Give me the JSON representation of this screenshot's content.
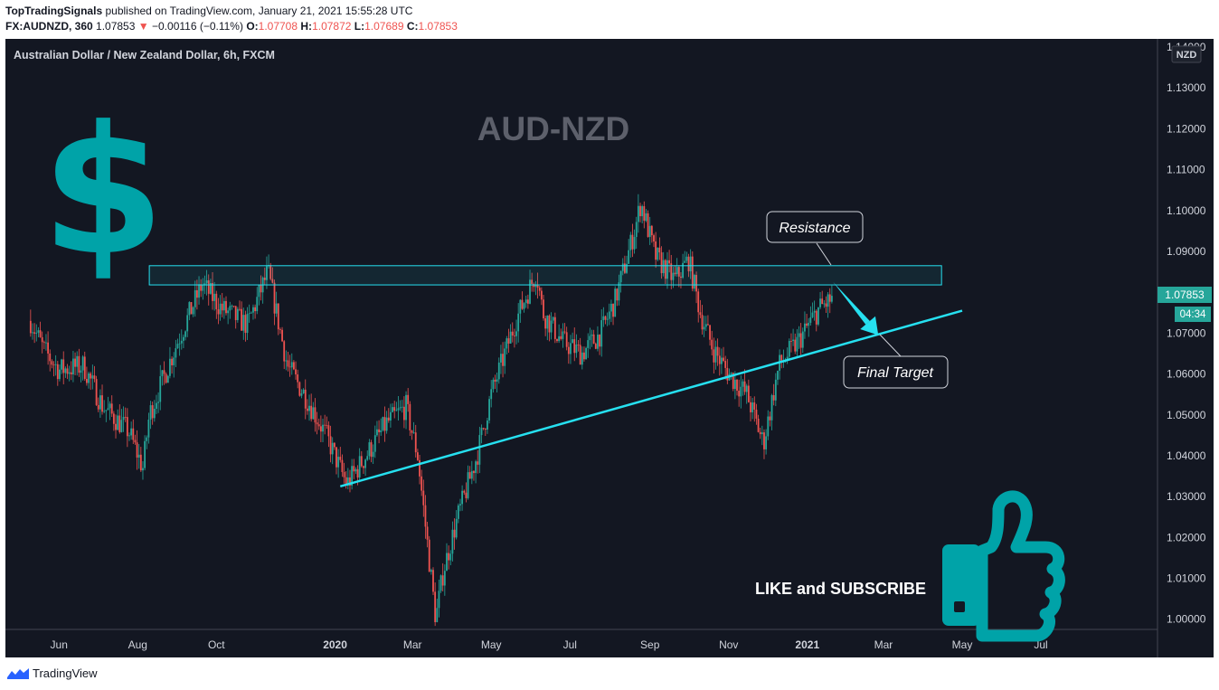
{
  "header": {
    "author": "TopTradingSignals",
    "published": "published on TradingView.com, January 21, 2021 15:55:28 UTC",
    "symbol": "FX:AUDNZD, 360",
    "last": "1.07853",
    "change": "−0.00116 (−0.11%)",
    "open_label": "O:",
    "open": "1.07708",
    "high_label": "H:",
    "high": "1.07872",
    "low_label": "L:",
    "low": "1.07689",
    "close_label": "C:",
    "close": "1.07853"
  },
  "chart": {
    "instrument": "Australian Dollar / New Zealand Dollar, 6h, FXCM",
    "watermark": "AUD-NZD",
    "currency_badge": "NZD",
    "price_label": "1.07853",
    "countdown_label": "04:34",
    "resistance_label": "Resistance",
    "target_label": "Final Target",
    "cta": "LIKE and SUBSCRIBE",
    "dollar_icon": "$"
  },
  "colors": {
    "background": "#131722",
    "up": "#26a69a",
    "down": "#ef5350",
    "trendline": "#26e0f0",
    "icon": "#00a3a8",
    "watermark": "#5d606b"
  },
  "footer": {
    "brand": "TradingView"
  },
  "chart_data": {
    "type": "candlestick",
    "title": "Australian Dollar / New Zealand Dollar, 6h, FXCM",
    "y_ticks": [
      "1.00000",
      "1.01000",
      "1.02000",
      "1.03000",
      "1.04000",
      "1.05000",
      "1.06000",
      "1.07000",
      "1.08000",
      "1.09000",
      "1.10000",
      "1.11000",
      "1.12000",
      "1.13000",
      "1.14000"
    ],
    "x_ticks": [
      "Jun",
      "Aug",
      "Oct",
      "2020",
      "Mar",
      "May",
      "Jul",
      "Sep",
      "Nov",
      "2021",
      "Mar",
      "May",
      "Jul"
    ],
    "ylim": [
      0.9975,
      1.142
    ],
    "last_price": 1.07853,
    "approx_close_path": [
      {
        "date": "2019-05-10",
        "close": 1.073
      },
      {
        "date": "2019-05-20",
        "close": 1.066
      },
      {
        "date": "2019-06-01",
        "close": 1.061
      },
      {
        "date": "2019-06-20",
        "close": 1.062
      },
      {
        "date": "2019-07-05",
        "close": 1.052
      },
      {
        "date": "2019-07-25",
        "close": 1.046
      },
      {
        "date": "2019-08-05",
        "close": 1.037
      },
      {
        "date": "2019-08-10",
        "close": 1.05
      },
      {
        "date": "2019-09-01",
        "close": 1.068
      },
      {
        "date": "2019-09-20",
        "close": 1.082
      },
      {
        "date": "2019-10-05",
        "close": 1.076
      },
      {
        "date": "2019-10-25",
        "close": 1.072
      },
      {
        "date": "2019-11-10",
        "close": 1.085
      },
      {
        "date": "2019-11-25",
        "close": 1.062
      },
      {
        "date": "2019-12-10",
        "close": 1.054
      },
      {
        "date": "2019-12-25",
        "close": 1.045
      },
      {
        "date": "2020-01-10",
        "close": 1.033
      },
      {
        "date": "2020-01-25",
        "close": 1.04
      },
      {
        "date": "2020-02-10",
        "close": 1.048
      },
      {
        "date": "2020-02-25",
        "close": 1.052
      },
      {
        "date": "2020-03-05",
        "close": 1.04
      },
      {
        "date": "2020-03-19",
        "close": 1.0
      },
      {
        "date": "2020-03-25",
        "close": 1.012
      },
      {
        "date": "2020-04-05",
        "close": 1.025
      },
      {
        "date": "2020-04-20",
        "close": 1.04
      },
      {
        "date": "2020-05-01",
        "close": 1.055
      },
      {
        "date": "2020-05-20",
        "close": 1.073
      },
      {
        "date": "2020-06-05",
        "close": 1.085
      },
      {
        "date": "2020-06-10",
        "close": 1.075
      },
      {
        "date": "2020-06-25",
        "close": 1.068
      },
      {
        "date": "2020-07-10",
        "close": 1.065
      },
      {
        "date": "2020-07-25",
        "close": 1.07
      },
      {
        "date": "2020-08-05",
        "close": 1.078
      },
      {
        "date": "2020-08-20",
        "close": 1.095
      },
      {
        "date": "2020-08-25",
        "close": 1.102
      },
      {
        "date": "2020-09-05",
        "close": 1.089
      },
      {
        "date": "2020-09-20",
        "close": 1.083
      },
      {
        "date": "2020-10-01",
        "close": 1.088
      },
      {
        "date": "2020-10-10",
        "close": 1.075
      },
      {
        "date": "2020-10-20",
        "close": 1.066
      },
      {
        "date": "2020-11-01",
        "close": 1.06
      },
      {
        "date": "2020-11-15",
        "close": 1.055
      },
      {
        "date": "2020-11-28",
        "close": 1.043
      },
      {
        "date": "2020-12-10",
        "close": 1.062
      },
      {
        "date": "2020-12-25",
        "close": 1.068
      },
      {
        "date": "2021-01-10",
        "close": 1.076
      },
      {
        "date": "2021-01-21",
        "close": 1.07853
      }
    ],
    "annotations": [
      {
        "type": "resistance_zone",
        "price_top": 1.0865,
        "price_bottom": 1.0818,
        "start": "2019-08-10",
        "end": "2021-04-15"
      },
      {
        "type": "trendline",
        "start_date": "2020-01-05",
        "start_price": 1.0325,
        "end_date": "2021-05-01",
        "end_price": 1.0755
      },
      {
        "type": "arrow",
        "from_date": "2021-01-21",
        "from_price": 1.0825,
        "to_date": "2021-02-25",
        "to_price": 1.0695
      },
      {
        "type": "callout",
        "text": "Resistance"
      },
      {
        "type": "callout",
        "text": "Final Target"
      }
    ]
  }
}
